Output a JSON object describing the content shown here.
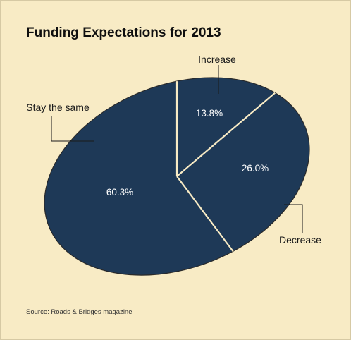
{
  "source": "Source: Roads & Bridges magazine",
  "colors": {
    "background": "#f8ebc5",
    "slice": "#1e3957",
    "divider": "#f8ebc5",
    "label_text": "#ffffff",
    "callout_text": "#1a1a1a"
  },
  "chart_data": {
    "type": "pie",
    "title": "Funding Expectations for 2013",
    "style": "3d-tilted-ellipse",
    "legend": "callout-labels",
    "slices": [
      {
        "label": "Increase",
        "value": 13.8,
        "display": "13.8%"
      },
      {
        "label": "Decrease",
        "value": 26.0,
        "display": "26.0%"
      },
      {
        "label": "Stay the same",
        "value": 60.3,
        "display": "60.3%"
      }
    ]
  }
}
